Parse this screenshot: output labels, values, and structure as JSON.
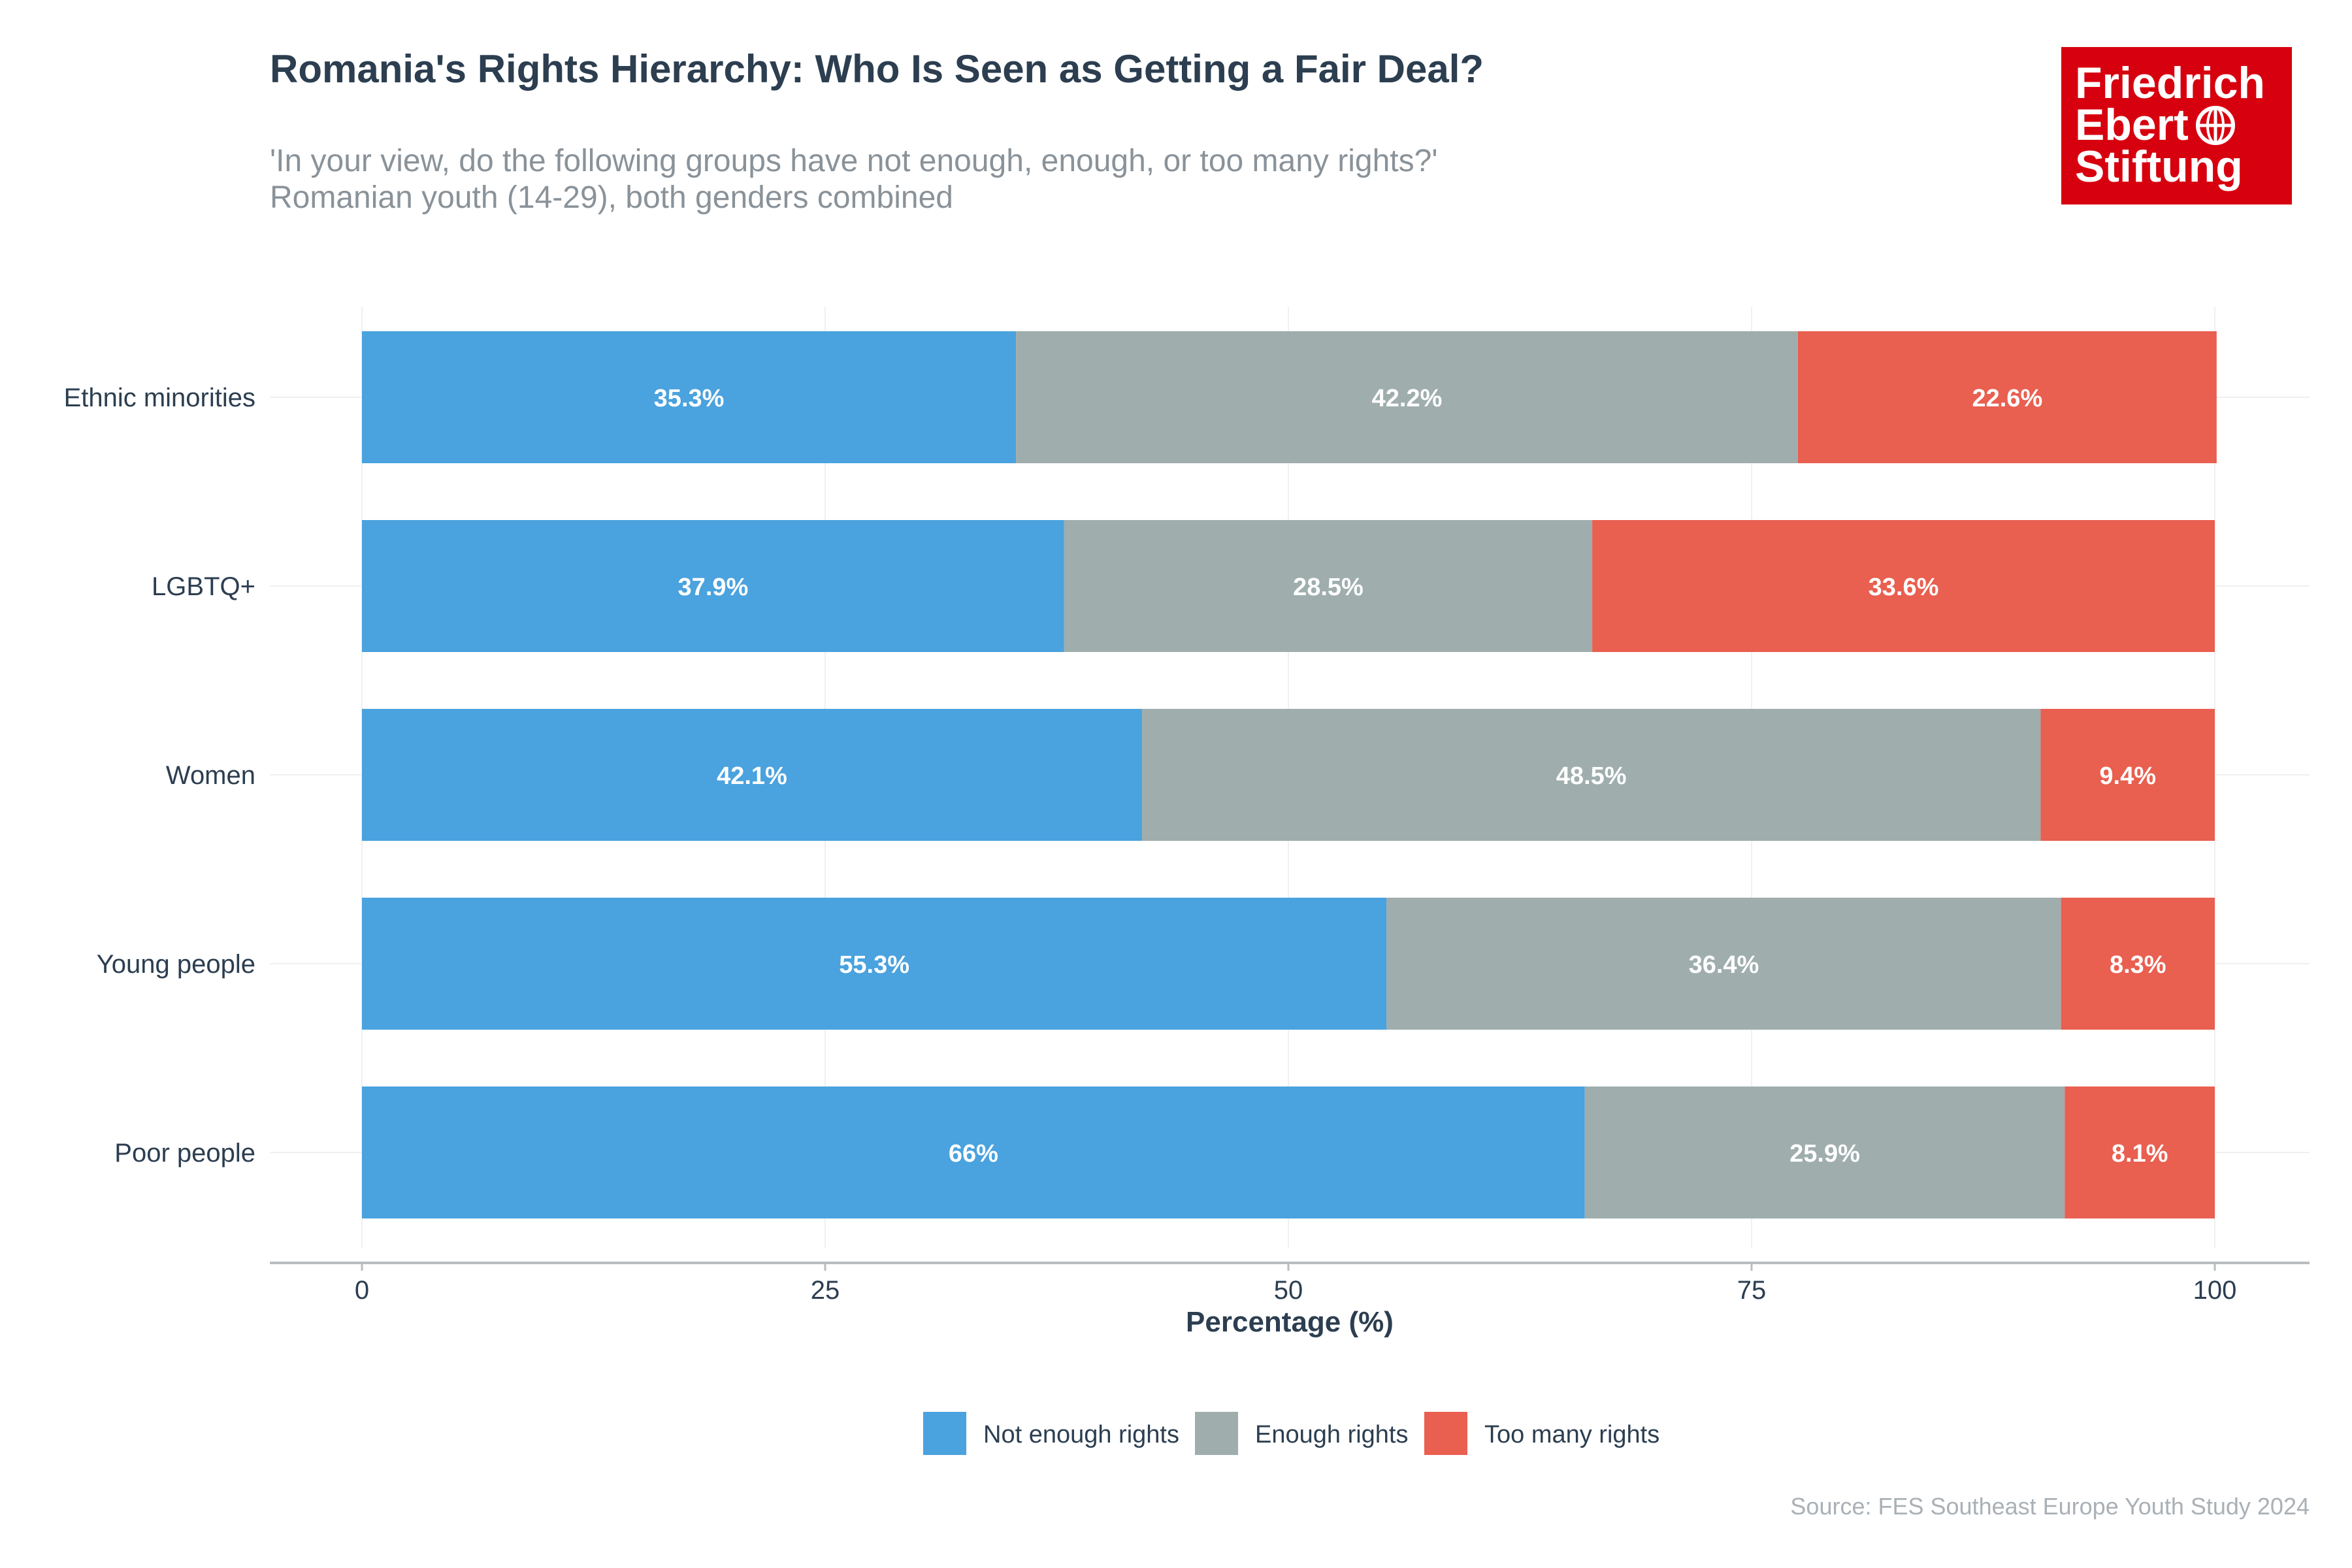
{
  "title": "Romania's Rights Hierarchy: Who Is Seen as Getting a Fair Deal?",
  "subtitle_lines": [
    "'In your view, do the following groups have not enough, enough, or too many rights?'",
    "Romanian youth (14-29), both genders combined"
  ],
  "logo": {
    "lines": [
      "Friedrich",
      "Ebert",
      "Stiftung"
    ],
    "background": "#d7000f"
  },
  "source": "Source: FES Southeast Europe Youth Study 2024",
  "chart_data": {
    "type": "bar",
    "orientation": "horizontal",
    "stacked": true,
    "categories": [
      "Ethnic minorities",
      "LGBTQ+",
      "Women",
      "Young people",
      "Poor people"
    ],
    "series": [
      {
        "name": "Not enough rights",
        "color": "#4aa2de",
        "values": [
          35.3,
          37.9,
          42.1,
          55.3,
          66.0
        ],
        "labels": [
          "35.3%",
          "37.9%",
          "42.1%",
          "55.3%",
          "66%"
        ]
      },
      {
        "name": "Enough rights",
        "color": "#9fadad",
        "values": [
          42.2,
          28.5,
          48.5,
          36.4,
          25.9
        ],
        "labels": [
          "42.2%",
          "28.5%",
          "48.5%",
          "36.4%",
          "25.9%"
        ]
      },
      {
        "name": "Too many rights",
        "color": "#e95f50",
        "values": [
          22.6,
          33.6,
          9.4,
          8.3,
          8.1
        ],
        "labels": [
          "22.6%",
          "33.6%",
          "9.4%",
          "8.3%",
          "8.1%"
        ]
      }
    ],
    "xlabel": "Percentage (%)",
    "ylabel": "",
    "xlim": [
      0,
      100
    ],
    "xticks": [
      0,
      25,
      50,
      75,
      100
    ],
    "grid": true,
    "legend": "bottom"
  }
}
